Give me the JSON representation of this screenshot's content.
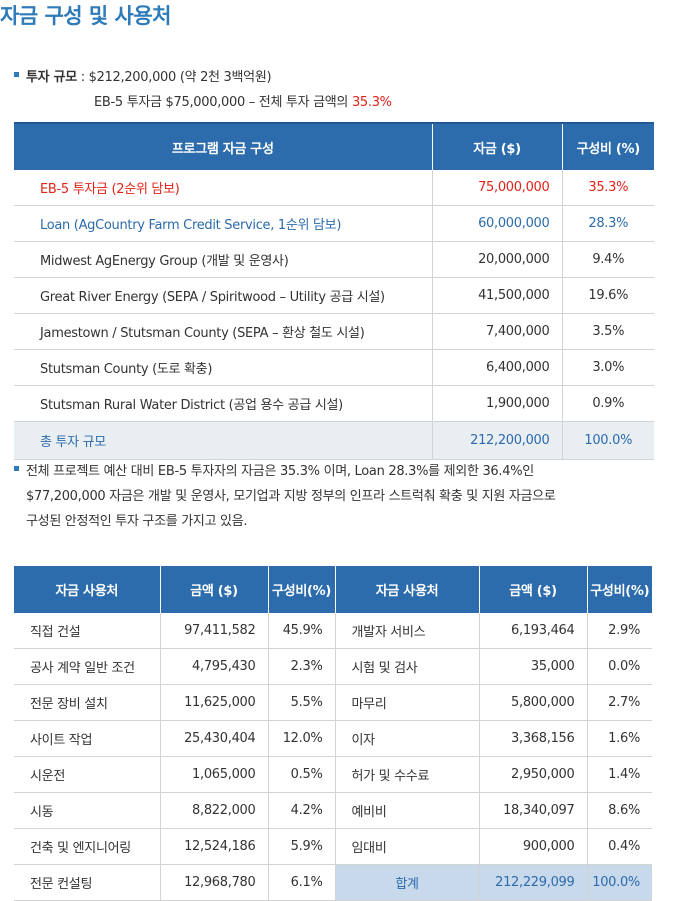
{
  "title": "자금 구성 및 사용처",
  "summary": {
    "line1_label": "투자 규모",
    "line1_value": " : $212,200,000 (약 2천 3백억원)",
    "line2_prefix": "EB-5 투자금 $75,000,000 – 전체 투자 금액의 ",
    "line2_pct": "35.3%"
  },
  "sources_table": {
    "headers": [
      "프로그램 자금 구성",
      "자금 ($)",
      "구성비 (%)"
    ],
    "rows": [
      {
        "name": "EB-5 투자금 (2순위 담보)",
        "amount": "75,000,000",
        "pct": "35.3%"
      },
      {
        "name": "Loan (AgCountry Farm Credit Service, 1순위 담보)",
        "amount": "60,000,000",
        "pct": "28.3%"
      },
      {
        "name": "Midwest AgEnergy Group (개발 및 운영사)",
        "amount": "20,000,000",
        "pct": "9.4%"
      },
      {
        "name": "Great River Energy (SEPA / Spiritwood – Utility 공급 시설)",
        "amount": "41,500,000",
        "pct": "19.6%"
      },
      {
        "name": "Jamestown / Stutsman County (SEPA – 환상 철도 시설)",
        "amount": "7,400,000",
        "pct": "3.5%"
      },
      {
        "name": "Stutsman County (도로 확충)",
        "amount": "6,400,000",
        "pct": "3.0%"
      },
      {
        "name": "Stutsman Rural Water District (공업 용수 공급 시설)",
        "amount": "1,900,000",
        "pct": "0.9%"
      }
    ],
    "total": {
      "name": "총 투자 규모",
      "amount": "212,200,000",
      "pct": "100.0%"
    }
  },
  "note": {
    "line1": "전체 프로젝트 예산 대비 EB-5 투자자의 자금은 35.3% 이며, Loan 28.3%를 제외한 36.4%인",
    "line2": "$77,200,000 자금은 개발 및 운영사, 모기업과 지방 정부의 인프라 스트럭춰 확충 및 지원 자금으로",
    "line3": "구성된 안정적인 투자 구조를 가지고 있음."
  },
  "uses_table": {
    "headers": [
      "자금 사용처",
      "금액 ($)",
      "구성비(%)",
      "자금 사용처",
      "금액 ($)",
      "구성비(%)"
    ],
    "rows": [
      {
        "l_name": "직접 건설",
        "l_amount": "97,411,582",
        "l_pct": "45.9%",
        "r_name": "개발자 서비스",
        "r_amount": "6,193,464",
        "r_pct": "2.9%"
      },
      {
        "l_name": "공사 계약 일반 조건",
        "l_amount": "4,795,430",
        "l_pct": "2.3%",
        "r_name": "시험 및 검사",
        "r_amount": "35,000",
        "r_pct": "0.0%"
      },
      {
        "l_name": "전문 장비 설치",
        "l_amount": "11,625,000",
        "l_pct": "5.5%",
        "r_name": "마무리",
        "r_amount": "5,800,000",
        "r_pct": "2.7%"
      },
      {
        "l_name": "사이트 작업",
        "l_amount": "25,430,404",
        "l_pct": "12.0%",
        "r_name": "이자",
        "r_amount": "3,368,156",
        "r_pct": "1.6%"
      },
      {
        "l_name": "시운전",
        "l_amount": "1,065,000",
        "l_pct": "0.5%",
        "r_name": "허가 및 수수료",
        "r_amount": "2,950,000",
        "r_pct": "1.4%"
      },
      {
        "l_name": "시동",
        "l_amount": "8,822,000",
        "l_pct": "4.2%",
        "r_name": "예비비",
        "r_amount": "18,340,097",
        "r_pct": "8.6%"
      },
      {
        "l_name": "건축 및 엔지니어링",
        "l_amount": "12,524,186",
        "l_pct": "5.9%",
        "r_name": "임대비",
        "r_amount": "900,000",
        "r_pct": "0.4%"
      }
    ],
    "last_row": {
      "l_name": "전문 컨설팅",
      "l_amount": "12,968,780",
      "l_pct": "6.1%",
      "sum_label": "합계",
      "sum_amount": "212,229,099",
      "sum_pct": "100.0%"
    }
  }
}
